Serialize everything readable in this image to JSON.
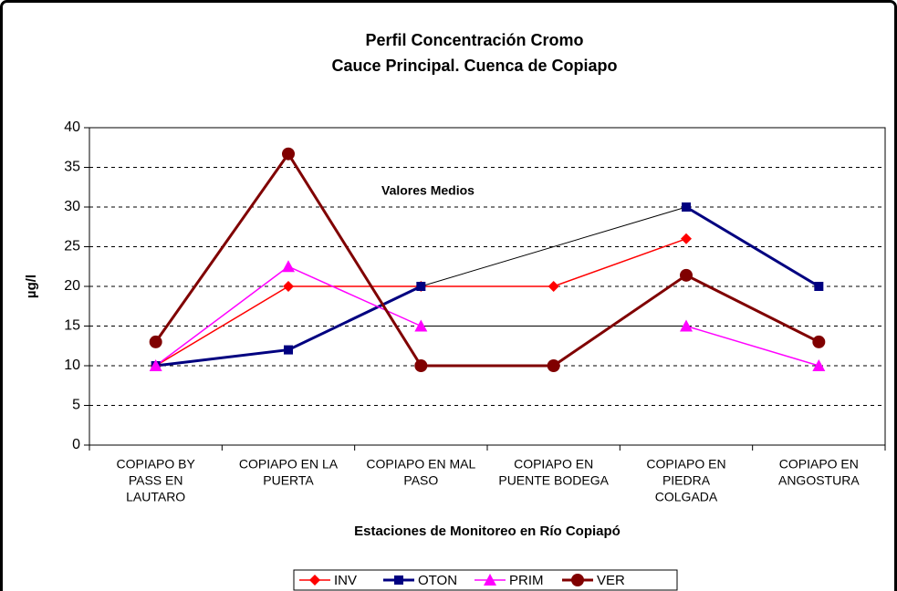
{
  "chart_data": {
    "type": "line",
    "title": [
      "Perfil Concentración Cromo",
      "Cauce Principal.  Cuenca de Copiapo"
    ],
    "annotation": "Valores Medios",
    "xlabel": "Estaciones de Monitoreo en Río Copiapó",
    "ylabel": "µg/l",
    "categories": [
      [
        "COPIAPO BY",
        "PASS EN",
        "LAUTARO"
      ],
      [
        "COPIAPO EN LA",
        "PUERTA"
      ],
      [
        "COPIAPO EN MAL",
        "PASO"
      ],
      [
        "COPIAPO EN",
        "PUENTE BODEGA"
      ],
      [
        "COPIAPO EN",
        "PIEDRA",
        "COLGADA"
      ],
      [
        "COPIAPO EN",
        "ANGOSTURA"
      ]
    ],
    "series": [
      {
        "name": "INV",
        "color": "#FF0000",
        "marker": "diamond",
        "width": 1.5,
        "values": [
          10,
          20,
          20,
          20,
          26,
          null
        ]
      },
      {
        "name": "OTON",
        "color": "#000080",
        "marker": "square",
        "width": 3,
        "gap_line": "#000000",
        "values": [
          10,
          12,
          20,
          null,
          30,
          20
        ]
      },
      {
        "name": "PRIM",
        "color": "#FF00FF",
        "marker": "triangle",
        "width": 1.5,
        "gap_line": "#000000",
        "values": [
          10,
          22.5,
          15,
          null,
          15,
          10
        ]
      },
      {
        "name": "VER",
        "color": "#800000",
        "marker": "circle",
        "width": 3,
        "values": [
          13,
          36.7,
          10,
          10,
          21.4,
          13
        ]
      }
    ],
    "ylim": [
      0,
      40
    ],
    "yticks": [
      0,
      5,
      10,
      15,
      20,
      25,
      30,
      35,
      40
    ],
    "grid": true,
    "legend": "bottom"
  }
}
